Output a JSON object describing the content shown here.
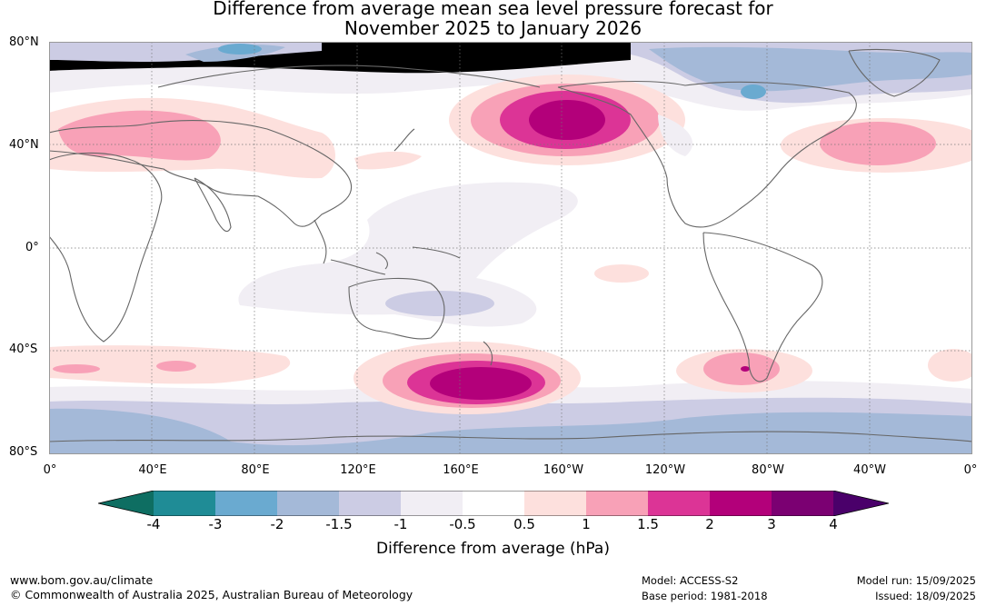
{
  "title": {
    "line1": "Difference from average mean sea level pressure forecast for",
    "line2": "November 2025 to January 2026"
  },
  "lat_labels": [
    "80°N",
    "40°N",
    "0°",
    "40°S",
    "80°S"
  ],
  "lon_labels": [
    "0°",
    "40°E",
    "80°E",
    "120°E",
    "160°E",
    "160°W",
    "120°W",
    "80°W",
    "40°W",
    "0°"
  ],
  "colorbar": {
    "title": "Difference from average (hPa)",
    "ticks": [
      "-4",
      "-3",
      "-2",
      "-1.5",
      "-1",
      "-0.5",
      "0.5",
      "1",
      "1.5",
      "2",
      "3",
      "4"
    ],
    "colors": [
      "#0e6e62",
      "#1f8c96",
      "#6aaad0",
      "#a4b9d8",
      "#ccceе4",
      "#f1eef4",
      "#ffffff",
      "#fde0dd",
      "#f8a1b7",
      "#dc3496",
      "#b3007a",
      "#7b0072",
      "#4a006a"
    ]
  },
  "footer": {
    "url": "www.bom.gov.au/climate",
    "copyright": "© Commonwealth of Australia 2025, Australian Bureau of Meteorology",
    "model": "Model: ACCESS-S2",
    "base_period": "Base period: 1981-2018",
    "model_run": "Model run: 15/09/2025",
    "issued": "Issued: 18/09/2025"
  },
  "colors": {
    "land_outline": "#666666",
    "grid": "#777777"
  }
}
